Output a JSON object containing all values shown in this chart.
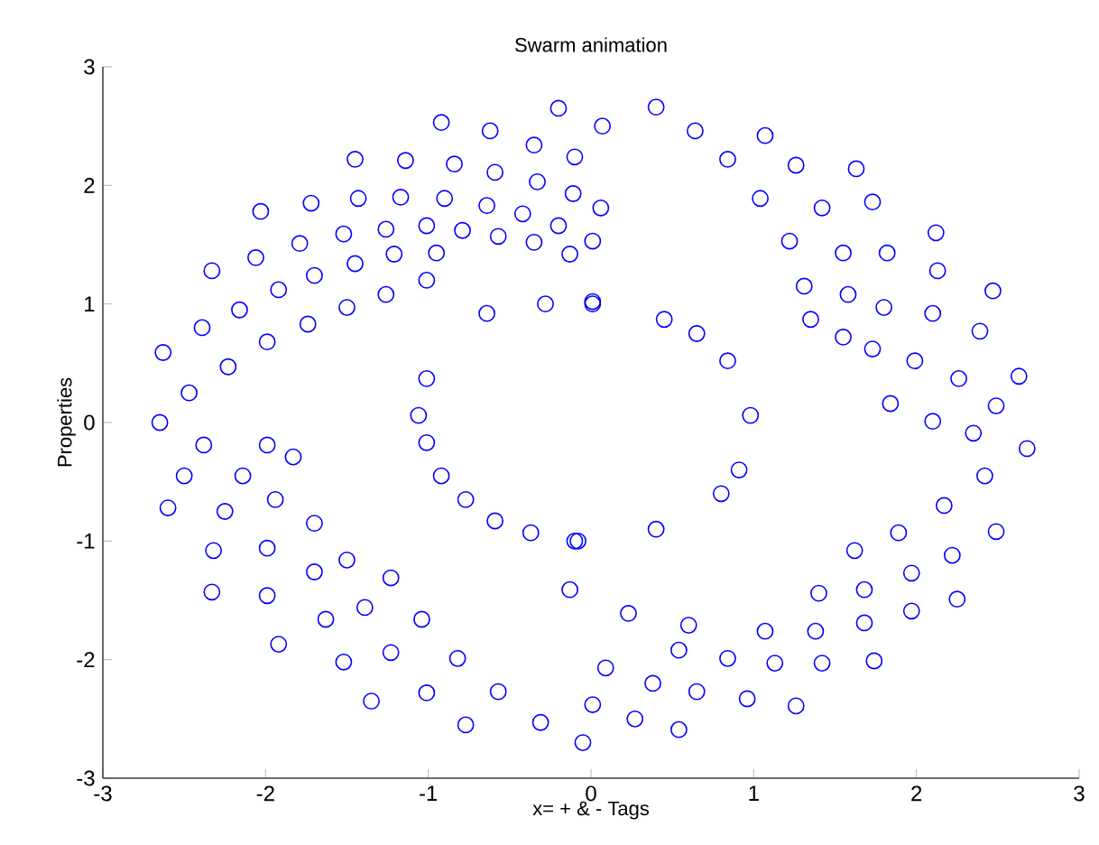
{
  "chart_data": {
    "type": "scatter",
    "title": "Swarm animation",
    "xlabel": "x= + & - Tags",
    "ylabel": "Properties",
    "xlim": [
      -3,
      3
    ],
    "ylim": [
      -3,
      3
    ],
    "xticks": [
      -3,
      -2,
      -1,
      0,
      1,
      2,
      3
    ],
    "yticks": [
      -3,
      -2,
      -1,
      0,
      1,
      2,
      3
    ],
    "marker": "circle",
    "series": [
      {
        "color": "#0000ff",
        "x": [
          -1.45,
          -1.14,
          -0.84,
          -0.59,
          -0.33,
          -0.11,
          0.06,
          -2.03,
          -1.72,
          -1.43,
          -1.17,
          -0.9,
          -0.64,
          -0.42,
          -0.2,
          0.01,
          -2.33,
          -2.06,
          -1.79,
          -1.52,
          -1.26,
          -1.01,
          -0.79,
          -0.57,
          -0.35,
          -0.13,
          -2.63,
          -2.39,
          -2.16,
          -1.92,
          -1.7,
          -1.45,
          -1.21,
          -0.95,
          -2.65,
          -2.47,
          -2.23,
          -1.99,
          -1.74,
          -1.5,
          -1.26,
          -1.01,
          -0.92,
          -0.62,
          -0.35,
          -0.1,
          -0.2,
          0.07,
          0.4,
          0.64,
          0.84,
          1.04,
          1.22,
          1.31,
          1.35,
          1.07,
          1.26,
          1.42,
          1.55,
          1.58,
          1.55,
          1.63,
          1.73,
          1.82,
          1.8,
          1.73,
          2.12,
          2.13,
          2.1,
          1.99,
          1.84,
          2.47,
          2.39,
          2.26,
          2.1,
          2.63,
          2.49,
          2.35,
          0.01,
          0.45,
          0.84,
          0.98,
          0.65,
          2.68,
          2.42,
          2.17,
          1.89,
          1.62,
          2.49,
          2.22,
          1.97,
          1.68,
          1.4,
          2.25,
          1.97,
          1.68,
          1.38,
          1.07,
          1.74,
          1.42,
          1.13,
          0.84,
          0.54,
          1.26,
          0.96,
          0.65,
          0.38,
          0.09,
          0.54,
          0.27,
          0.01,
          -0.08,
          0.4,
          0.8,
          0.91,
          -0.13,
          0.23,
          0.6,
          -0.05,
          -0.31,
          -0.57,
          -0.82,
          -1.04,
          -1.23,
          -0.77,
          -1.01,
          -1.23,
          -1.39,
          -1.5,
          -1.35,
          -1.52,
          -1.63,
          -1.7,
          -1.7,
          -1.92,
          -1.99,
          -1.99,
          -1.94,
          -1.83,
          -2.33,
          -2.32,
          -2.25,
          -2.14,
          -1.99,
          -2.6,
          -2.5,
          -2.38,
          -1.01,
          -0.92,
          -0.77,
          -0.59,
          -0.37,
          -0.1,
          -1.06,
          -1.01,
          -0.64,
          -0.28,
          0.01
        ],
        "values": [
          2.22,
          2.21,
          2.18,
          2.11,
          2.03,
          1.93,
          1.81,
          1.78,
          1.85,
          1.89,
          1.9,
          1.89,
          1.83,
          1.76,
          1.66,
          1.53,
          1.28,
          1.39,
          1.51,
          1.59,
          1.63,
          1.66,
          1.62,
          1.57,
          1.52,
          1.42,
          0.59,
          0.8,
          0.95,
          1.12,
          1.24,
          1.34,
          1.42,
          1.43,
          0,
          0.25,
          0.47,
          0.68,
          0.83,
          0.97,
          1.08,
          1.2,
          2.53,
          2.46,
          2.34,
          2.24,
          2.65,
          2.5,
          2.66,
          2.46,
          2.22,
          1.89,
          1.53,
          1.15,
          0.87,
          2.42,
          2.17,
          1.81,
          1.43,
          1.08,
          0.72,
          2.14,
          1.86,
          1.43,
          0.97,
          0.62,
          1.6,
          1.28,
          0.92,
          0.52,
          0.16,
          1.11,
          0.77,
          0.37,
          0.01,
          0.39,
          0.14,
          -0.09,
          1,
          0.87,
          0.52,
          0.06,
          0.75,
          -0.22,
          -0.45,
          -0.7,
          -0.93,
          -1.08,
          -0.92,
          -1.12,
          -1.27,
          -1.41,
          -1.44,
          -1.49,
          -1.59,
          -1.69,
          -1.76,
          -1.76,
          -2.01,
          -2.03,
          -2.03,
          -1.99,
          -1.92,
          -2.39,
          -2.33,
          -2.27,
          -2.2,
          -2.07,
          -2.59,
          -2.5,
          -2.38,
          -1,
          -0.9,
          -0.6,
          -0.4,
          -1.41,
          -1.61,
          -1.71,
          -2.7,
          -2.53,
          -2.27,
          -1.99,
          -1.66,
          -1.31,
          -2.55,
          -2.28,
          -1.94,
          -1.56,
          -1.16,
          -2.35,
          -2.02,
          -1.66,
          -1.26,
          -0.85,
          -1.87,
          -1.46,
          -1.06,
          -0.65,
          -0.29,
          -1.43,
          -1.08,
          -0.75,
          -0.45,
          -0.19,
          -0.72,
          -0.45,
          -0.19,
          -0.17,
          -0.45,
          -0.65,
          -0.83,
          -0.93,
          -1,
          0.06,
          0.37,
          0.92,
          1,
          1.02
        ]
      }
    ]
  }
}
